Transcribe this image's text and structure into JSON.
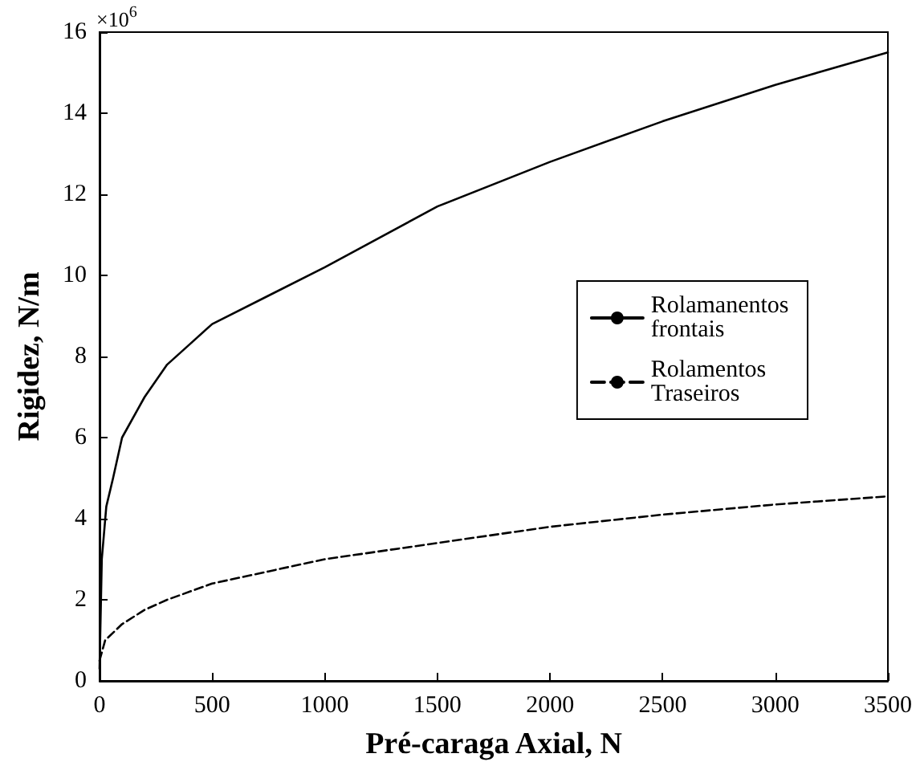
{
  "chart_data": {
    "type": "line",
    "xlabel": "Pré-caraga Axial, N",
    "ylabel": "Rigidez, N/m",
    "annotations": [
      "×10$^{6}$"
    ],
    "xlim": [
      0,
      3500
    ],
    "xticks": [
      0,
      500,
      1000,
      1500,
      2000,
      2500,
      3000,
      3500
    ],
    "ylim": [
      0,
      16
    ],
    "yticks": [
      0,
      2,
      4,
      6,
      8,
      10,
      12,
      14,
      16
    ],
    "grid": false,
    "legend": "right",
    "marker": "none",
    "series": [
      {
        "name": "Rolamanentos frontais",
        "color": "#000000",
        "line_style": "solid",
        "x": [
          0,
          10,
          30,
          60,
          100,
          200,
          300,
          400,
          500,
          750,
          1000,
          1500,
          2000,
          2500,
          3000,
          3500
        ],
        "values": [
          0.3,
          3.0,
          4.3,
          5.0,
          6.0,
          7.0,
          7.8,
          8.3,
          8.8,
          9.5,
          10.2,
          11.7,
          12.8,
          13.8,
          14.7,
          15.5
        ]
      },
      {
        "name": "Rolamentos Traseiros",
        "color": "#000000",
        "line_style": "dashed",
        "x": [
          0,
          25,
          100,
          200,
          300,
          500,
          750,
          1000,
          1500,
          2000,
          2500,
          3000,
          3500
        ],
        "values": [
          0.5,
          1.0,
          1.4,
          1.75,
          2.0,
          2.4,
          2.7,
          3.0,
          3.4,
          3.8,
          4.1,
          4.35,
          4.55
        ]
      }
    ]
  }
}
